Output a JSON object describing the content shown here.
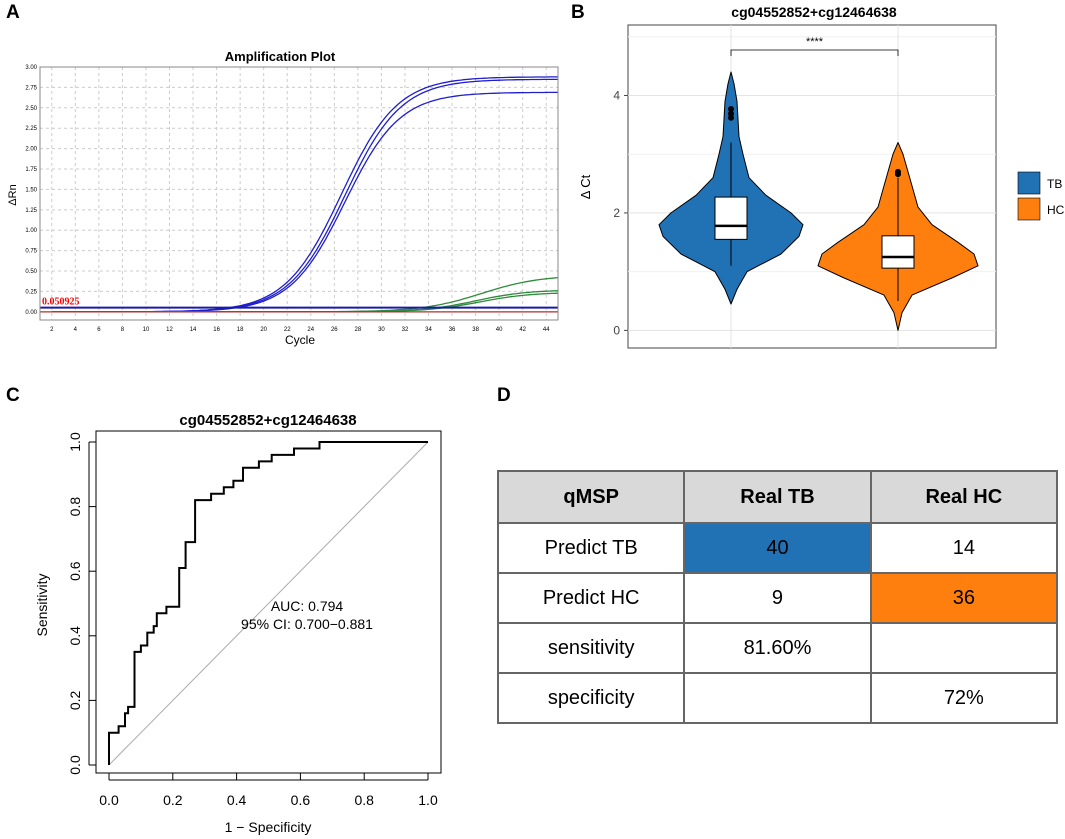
{
  "panels": {
    "A": {
      "letter": "A",
      "chart_data": {
        "type": "line",
        "title": "Amplification Plot",
        "xlabel": "Cycle",
        "ylabel": "ΔRn",
        "xlim": [
          1,
          45
        ],
        "ylim": [
          -0.1,
          3.0
        ],
        "xticks": [
          "2",
          "4",
          "6",
          "8",
          "10",
          "12",
          "14",
          "16",
          "18",
          "20",
          "22",
          "24",
          "26",
          "28",
          "30",
          "32",
          "34",
          "36",
          "38",
          "40",
          "42",
          "44"
        ],
        "yticks": [
          "3.00",
          "2.75",
          "2.50",
          "2.25",
          "2.00",
          "1.75",
          "1.50",
          "1.25",
          "1.00",
          "0.75",
          "0.50",
          "0.25",
          "0.00"
        ],
        "threshold": {
          "label": "0.050925",
          "value": 0.050925,
          "color": "#ff0000"
        },
        "series": [
          {
            "name": "blue-1",
            "color": "#1f1fcc",
            "plateau": 2.88,
            "mid": 26.6,
            "k": 0.42
          },
          {
            "name": "blue-2",
            "color": "#1f1fcc",
            "plateau": 2.85,
            "mid": 26.9,
            "k": 0.42
          },
          {
            "name": "blue-3",
            "color": "#1f1fcc",
            "plateau": 2.69,
            "mid": 26.9,
            "k": 0.43
          },
          {
            "name": "green-1",
            "color": "#2e8b3a",
            "plateau": 0.45,
            "mid": 38.5,
            "k": 0.4
          },
          {
            "name": "green-2",
            "color": "#2e8b3a",
            "plateau": 0.27,
            "mid": 38.0,
            "k": 0.45
          },
          {
            "name": "green-3",
            "color": "#2e8b3a",
            "plateau": 0.24,
            "mid": 38.3,
            "k": 0.45
          }
        ]
      }
    },
    "B": {
      "letter": "B",
      "chart_data": {
        "type": "violin",
        "title": "cg04552852+cg12464638",
        "ylabel": "Δ Ct",
        "ylim": [
          -0.3,
          5.2
        ],
        "yticks": [
          "0",
          "2",
          "4"
        ],
        "significance": "****",
        "legend": [
          {
            "label": "TB",
            "color": "#2171b5"
          },
          {
            "label": "HC",
            "color": "#ff7f0e"
          }
        ],
        "groups": [
          {
            "name": "TB",
            "color": "#2171b5",
            "min": 0.45,
            "max": 4.4,
            "q1": 1.55,
            "median": 1.78,
            "q3": 2.27,
            "whisker_low": 1.1,
            "whisker_high": 3.2,
            "outliers": [
              3.62,
              3.69,
              3.77
            ]
          },
          {
            "name": "HC",
            "color": "#ff7f0e",
            "min": 0.0,
            "max": 3.2,
            "q1": 1.06,
            "median": 1.25,
            "q3": 1.61,
            "whisker_low": 0.5,
            "whisker_high": 2.6,
            "outliers": [
              2.66,
              2.7
            ]
          }
        ]
      }
    },
    "C": {
      "letter": "C",
      "chart_data": {
        "type": "line",
        "title": "cg04552852+cg12464638",
        "xlabel": "1 − Specificity",
        "ylabel": "Sensitivity",
        "xlim": [
          0,
          1
        ],
        "ylim": [
          0,
          1
        ],
        "xticks": [
          "0.0",
          "0.2",
          "0.4",
          "0.6",
          "0.8",
          "1.0"
        ],
        "yticks": [
          "0.0",
          "0.2",
          "0.4",
          "0.6",
          "0.8",
          "1.0"
        ],
        "annotation": [
          "AUC: 0.794",
          "95% CI: 0.700−0.881"
        ],
        "roc": [
          [
            0,
            0
          ],
          [
            0,
            0.1
          ],
          [
            0.03,
            0.1
          ],
          [
            0.03,
            0.12
          ],
          [
            0.05,
            0.12
          ],
          [
            0.05,
            0.16
          ],
          [
            0.06,
            0.16
          ],
          [
            0.06,
            0.18
          ],
          [
            0.08,
            0.18
          ],
          [
            0.08,
            0.35
          ],
          [
            0.1,
            0.35
          ],
          [
            0.1,
            0.37
          ],
          [
            0.12,
            0.37
          ],
          [
            0.12,
            0.41
          ],
          [
            0.14,
            0.41
          ],
          [
            0.14,
            0.43
          ],
          [
            0.15,
            0.43
          ],
          [
            0.15,
            0.47
          ],
          [
            0.18,
            0.47
          ],
          [
            0.18,
            0.49
          ],
          [
            0.22,
            0.49
          ],
          [
            0.22,
            0.61
          ],
          [
            0.24,
            0.61
          ],
          [
            0.24,
            0.69
          ],
          [
            0.27,
            0.69
          ],
          [
            0.27,
            0.82
          ],
          [
            0.32,
            0.82
          ],
          [
            0.32,
            0.84
          ],
          [
            0.36,
            0.84
          ],
          [
            0.36,
            0.86
          ],
          [
            0.39,
            0.86
          ],
          [
            0.39,
            0.88
          ],
          [
            0.42,
            0.88
          ],
          [
            0.42,
            0.92
          ],
          [
            0.47,
            0.92
          ],
          [
            0.47,
            0.94
          ],
          [
            0.51,
            0.94
          ],
          [
            0.51,
            0.96
          ],
          [
            0.58,
            0.96
          ],
          [
            0.58,
            0.98
          ],
          [
            0.66,
            0.98
          ],
          [
            0.66,
            1.0
          ],
          [
            1.0,
            1.0
          ]
        ]
      }
    },
    "D": {
      "letter": "D",
      "chart_data": {
        "type": "table",
        "header": [
          "qMSP",
          "Real TB",
          "Real HC"
        ],
        "rows": [
          [
            "Predict TB",
            "40",
            "14"
          ],
          [
            "Predict HC",
            "9",
            "36"
          ],
          [
            "sensitivity",
            "81.60%",
            ""
          ],
          [
            "specificity",
            "",
            "72%"
          ]
        ],
        "highlight_colors": {
          "tb": "#2171b5",
          "hc": "#ff7f0e"
        }
      }
    }
  }
}
